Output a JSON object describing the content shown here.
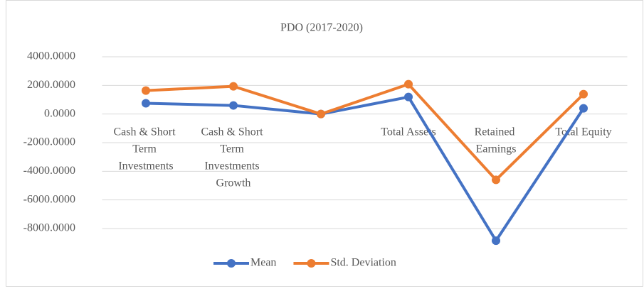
{
  "chart_data": {
    "type": "line",
    "title": "PDO (2017-2020)",
    "categories": [
      "Cash & Short Term Investments",
      "Cash & Short Term Investments Growth",
      null,
      "Total Assets",
      "Retained Earnings",
      "Total Equity"
    ],
    "series": [
      {
        "name": "Mean",
        "color": "#4472c4",
        "values": [
          750,
          600,
          0,
          1190,
          -8850,
          400
        ]
      },
      {
        "name": "Std. Deviation",
        "color": "#ed7d31",
        "values": [
          1640,
          1935,
          0,
          2085,
          -4600,
          1390
        ]
      }
    ],
    "ylim": [
      -9000,
      4000
    ],
    "yticks": [
      {
        "value": 4000,
        "label": "4000.0000"
      },
      {
        "value": 2000,
        "label": "2000.0000"
      },
      {
        "value": 0,
        "label": "0.0000"
      },
      {
        "value": -2000,
        "label": "-2000.0000"
      },
      {
        "value": -4000,
        "label": "-4000.0000"
      },
      {
        "value": -6000,
        "label": "-6000.0000"
      },
      {
        "value": -8000,
        "label": "-8000.0000"
      }
    ],
    "grid": true,
    "legend": "bottom"
  }
}
